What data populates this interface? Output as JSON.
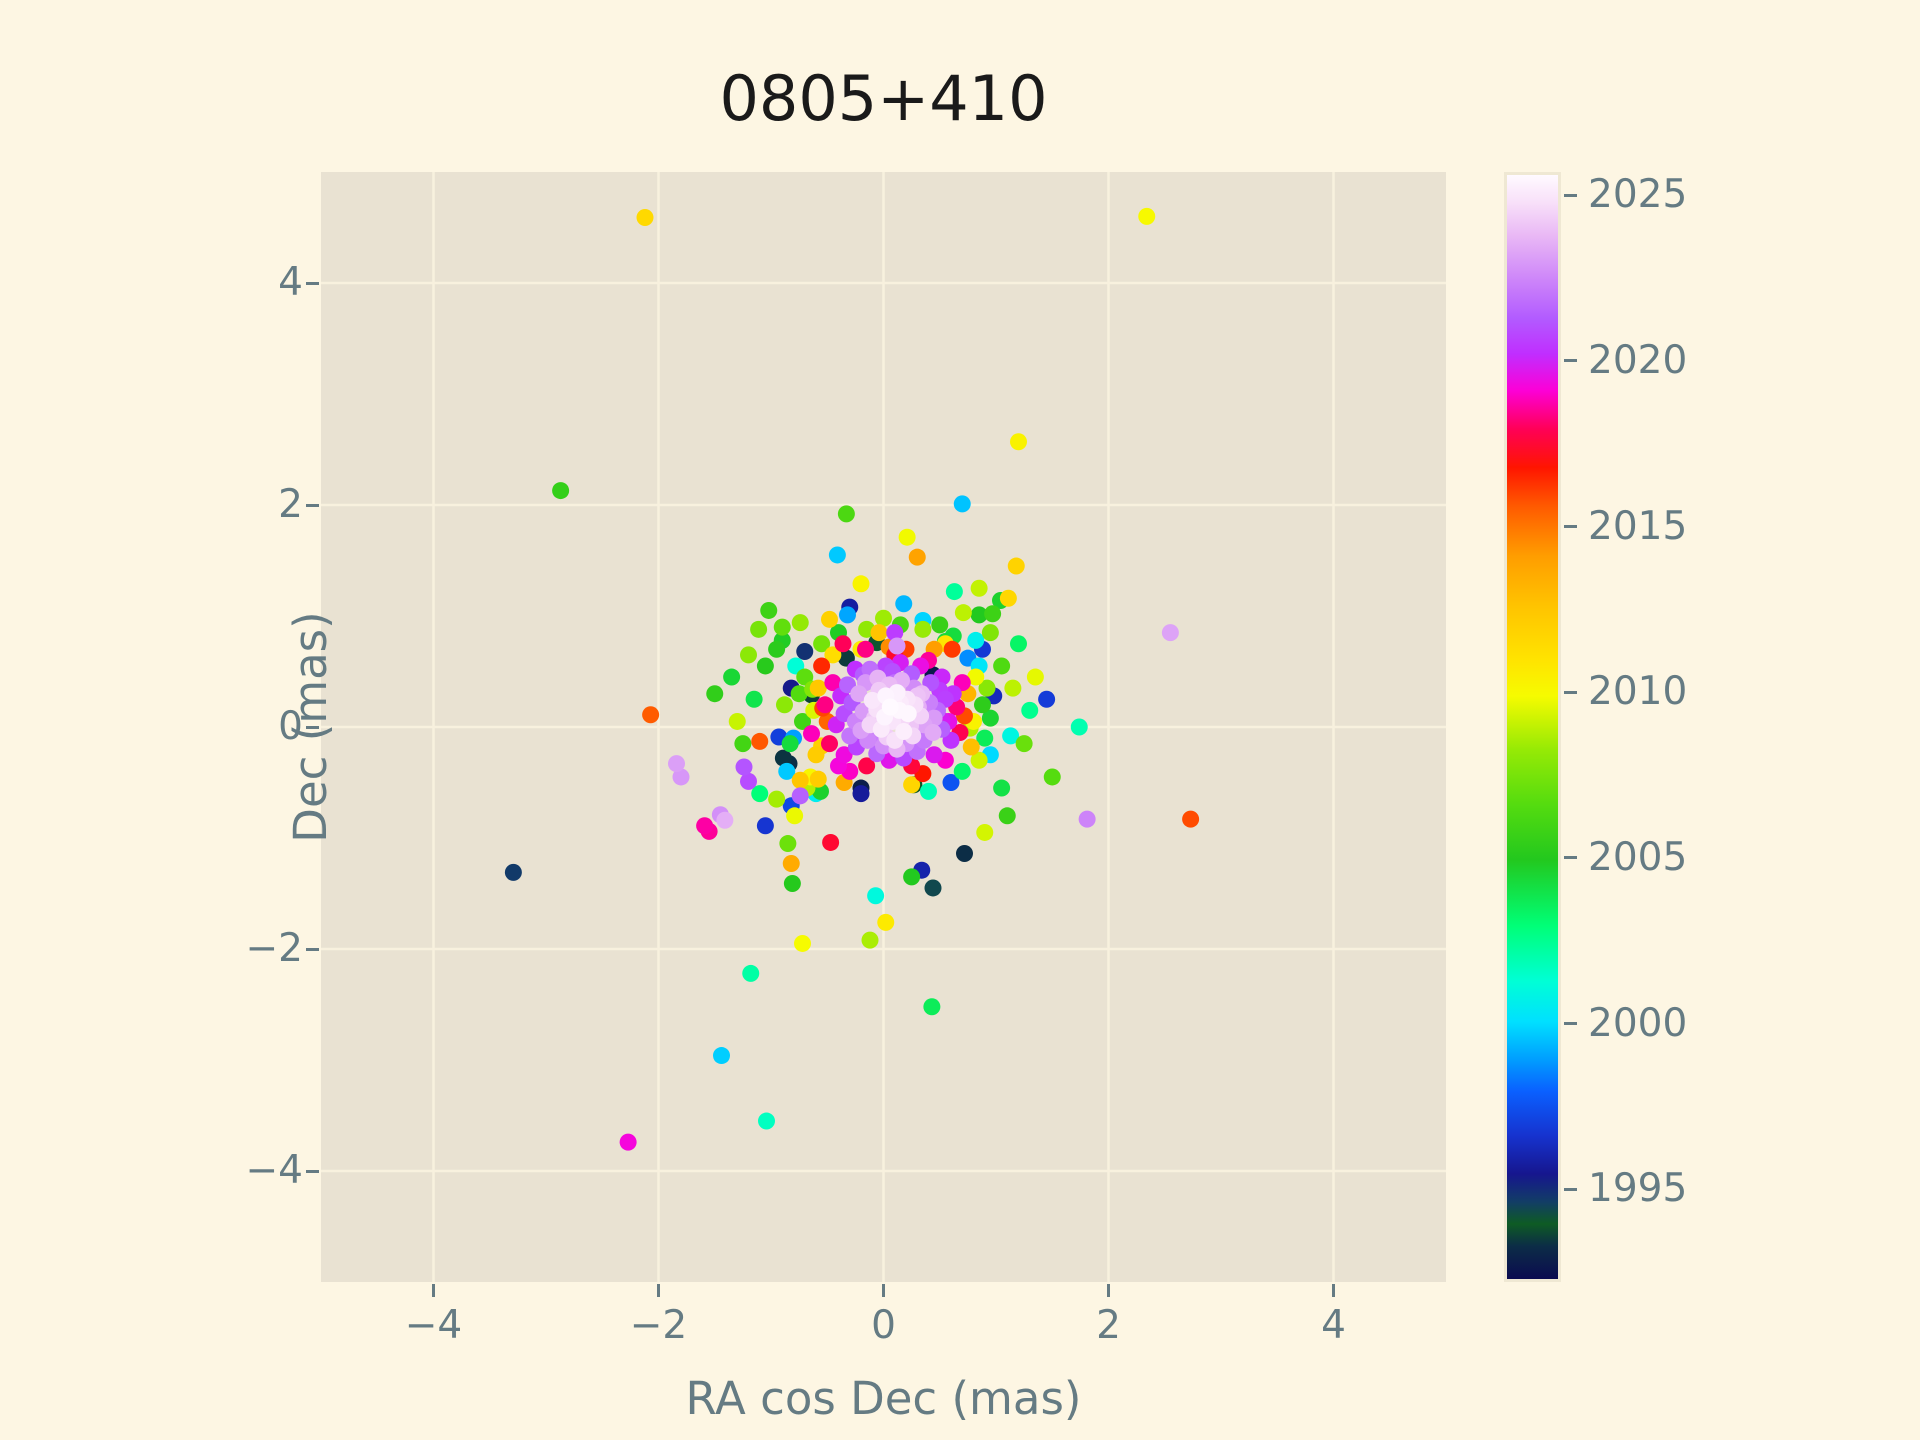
{
  "title": "0805+410",
  "colors": {
    "figure_bg": "#fdf6e3",
    "axes_bg": "#e9e2d2",
    "grid": "#f8f1de",
    "tick_text": "#657b83",
    "axis_label_text": "#657b83",
    "title_text": "#1a1a1a",
    "colorbar_border": "#efe8d3"
  },
  "colorbar": {
    "vmin": 1992.2,
    "vmax": 2025.7,
    "tick_years": [
      1995,
      2000,
      2005,
      2010,
      2015,
      2020,
      2025
    ],
    "colormap_name": "gist_ncar-like",
    "stops": [
      [
        0.0,
        "#0b0b50"
      ],
      [
        0.03,
        "#0c2d46"
      ],
      [
        0.05,
        "#0e5b24"
      ],
      [
        0.07,
        "#123d66"
      ],
      [
        0.095,
        "#16168e"
      ],
      [
        0.13,
        "#1633cf"
      ],
      [
        0.17,
        "#0a60ff"
      ],
      [
        0.2,
        "#00a0ff"
      ],
      [
        0.233,
        "#00e0ff"
      ],
      [
        0.27,
        "#00ffd5"
      ],
      [
        0.32,
        "#00ff77"
      ],
      [
        0.38,
        "#23c81e"
      ],
      [
        0.43,
        "#55dc0f"
      ],
      [
        0.48,
        "#97ea05"
      ],
      [
        0.528,
        "#f6fb00"
      ],
      [
        0.56,
        "#ffe400"
      ],
      [
        0.61,
        "#ffc300"
      ],
      [
        0.655,
        "#ff9d00"
      ],
      [
        0.7,
        "#ff5a00"
      ],
      [
        0.735,
        "#ff1500"
      ],
      [
        0.77,
        "#ff0057"
      ],
      [
        0.805,
        "#fc00d7"
      ],
      [
        0.838,
        "#c02eff"
      ],
      [
        0.87,
        "#b25bff"
      ],
      [
        0.905,
        "#cd85f9"
      ],
      [
        0.945,
        "#e9b8f5"
      ],
      [
        0.975,
        "#f8e0f9"
      ],
      [
        1.0,
        "#fffaff"
      ]
    ]
  },
  "chart_data": {
    "type": "scatter",
    "title": "0805+410",
    "xlabel": "RA cos Dec (mas)",
    "ylabel": "Dec (mas)",
    "xlim": [
      -5,
      5
    ],
    "ylim": [
      -5,
      5
    ],
    "xticks": [
      -4,
      -2,
      0,
      2,
      4
    ],
    "yticks": [
      -4,
      -2,
      0,
      2,
      4
    ],
    "grid": true,
    "marker_diameter_px": 17,
    "color_encoding": "epoch year via rainbow colormap, range 1992.2-2025.7",
    "points_format": [
      "ra_cos_dec_mas",
      "dec_mas",
      "year"
    ],
    "points": [
      [
        -2.12,
        4.59,
        2011.5
      ],
      [
        2.34,
        4.6,
        2010.0
      ],
      [
        1.2,
        2.57,
        2010.3
      ],
      [
        -2.87,
        2.13,
        2005.5
      ],
      [
        0.7,
        2.01,
        1999.5
      ],
      [
        -0.33,
        1.92,
        2006.3
      ],
      [
        0.21,
        1.71,
        2009.8
      ],
      [
        0.3,
        1.53,
        2013.9
      ],
      [
        1.18,
        1.45,
        2011.8
      ],
      [
        1.11,
        1.16,
        2011.6
      ],
      [
        1.04,
        1.14,
        2004.6
      ],
      [
        0.18,
        1.11,
        1999.3
      ],
      [
        2.55,
        0.85,
        2023.3
      ],
      [
        1.45,
        0.25,
        1996.8
      ],
      [
        1.74,
        0.0,
        2001.9
      ],
      [
        2.73,
        -0.83,
        2015.9
      ],
      [
        1.81,
        -0.83,
        2022.5
      ],
      [
        0.72,
        -1.14,
        1993.2
      ],
      [
        0.34,
        -1.29,
        1995.9
      ],
      [
        -3.29,
        -1.31,
        1994.6
      ],
      [
        -2.07,
        0.11,
        2015.6
      ],
      [
        -1.8,
        -0.45,
        2023.0
      ],
      [
        -1.2,
        -0.49,
        2021.0
      ],
      [
        -1.41,
        -0.84,
        2023.6
      ],
      [
        -1.55,
        -0.94,
        2018.6
      ],
      [
        -0.72,
        -1.95,
        2009.9
      ],
      [
        -0.12,
        -1.92,
        2008.6
      ],
      [
        -1.18,
        -2.22,
        2002.1
      ],
      [
        0.43,
        -2.52,
        2003.6
      ],
      [
        -1.44,
        -2.96,
        1999.7
      ],
      [
        -1.04,
        -3.55,
        2001.6
      ],
      [
        -2.27,
        -3.74,
        2019.3
      ],
      [
        -0.84,
        -0.33,
        1993.2
      ],
      [
        -0.41,
        1.55,
        1999.6
      ],
      [
        -0.2,
        1.29,
        2010.2
      ],
      [
        -0.3,
        1.08,
        1995.7
      ],
      [
        -0.32,
        1.01,
        1999.0
      ],
      [
        0.35,
        0.96,
        1999.8
      ],
      [
        0.0,
        0.98,
        2008.4
      ],
      [
        0.71,
        1.03,
        2008.9
      ],
      [
        0.85,
        1.01,
        2004.9
      ],
      [
        0.63,
        1.22,
        2002.3
      ],
      [
        0.85,
        1.25,
        2009.0
      ],
      [
        0.97,
        1.02,
        2005.8
      ],
      [
        0.02,
        -1.76,
        2010.7
      ],
      [
        -0.07,
        -1.52,
        2001.0
      ],
      [
        0.25,
        -1.35,
        2004.9
      ],
      [
        0.44,
        -1.45,
        1994.3
      ],
      [
        0.61,
        0.7,
        2016.2
      ],
      [
        -0.16,
        0.7,
        2018.4
      ],
      [
        -0.36,
        0.75,
        2018.0
      ],
      [
        -0.04,
        0.85,
        2012.6
      ],
      [
        0.1,
        0.85,
        2020.6
      ],
      [
        0.12,
        0.73,
        2023.0
      ],
      [
        0.55,
        0.77,
        2004.3
      ],
      [
        0.82,
        0.78,
        2000.6
      ],
      [
        -1.02,
        1.05,
        2005.8
      ],
      [
        -1.11,
        0.88,
        2007.5
      ],
      [
        -0.9,
        0.78,
        2004.8
      ],
      [
        -0.95,
        0.7,
        2005.2
      ],
      [
        -0.74,
        0.94,
        2008.2
      ],
      [
        -0.48,
        0.97,
        2011.9
      ],
      [
        -0.88,
        0.2,
        2008.0
      ],
      [
        -0.64,
        0.29,
        1993.5
      ],
      [
        -0.63,
        0.34,
        2007.8
      ],
      [
        -0.54,
        0.17,
        2016.0
      ],
      [
        -1.1,
        -0.13,
        2015.7
      ],
      [
        -0.93,
        -0.09,
        1996.9
      ],
      [
        -0.64,
        -0.06,
        2018.9
      ],
      [
        -0.83,
        -0.15,
        2004.2
      ],
      [
        -0.55,
        -0.17,
        2012.0
      ],
      [
        -0.89,
        -0.28,
        1993.3
      ],
      [
        -0.86,
        -0.4,
        1999.6
      ],
      [
        -1.84,
        -0.33,
        2023.2
      ],
      [
        -1.24,
        -0.36,
        2021.2
      ],
      [
        -0.74,
        -0.48,
        2012.5
      ],
      [
        -0.67,
        -0.52,
        1997.0
      ],
      [
        -0.58,
        -0.47,
        2012.2
      ],
      [
        -0.56,
        -0.58,
        2004.6
      ],
      [
        -0.74,
        -0.62,
        2021.5
      ],
      [
        -0.82,
        -0.71,
        1997.2
      ],
      [
        -0.79,
        -0.8,
        2009.7
      ],
      [
        -1.59,
        -0.89,
        2018.7
      ],
      [
        -1.45,
        -0.79,
        2022.8
      ],
      [
        -1.05,
        -0.89,
        1996.6
      ],
      [
        -0.47,
        -1.04,
        2017.5
      ],
      [
        -0.82,
        -1.23,
        2013.6
      ],
      [
        -0.81,
        -1.41,
        2005.0
      ],
      [
        0.02,
        0.28,
        2025.5
      ],
      [
        0.15,
        0.22,
        2025.2
      ],
      [
        -0.06,
        0.16,
        2024.9
      ],
      [
        0.22,
        0.12,
        2025.6
      ],
      [
        0.08,
        0.05,
        2025.0
      ],
      [
        -0.12,
        0.02,
        2024.6
      ],
      [
        0.18,
        -0.04,
        2025.3
      ],
      [
        0.03,
        -0.09,
        2024.4
      ],
      [
        0.28,
        0.2,
        2024.8
      ],
      [
        -0.04,
        0.33,
        2024.3
      ],
      [
        0.12,
        0.31,
        2025.4
      ],
      [
        0.24,
        0.01,
        2024.2
      ],
      [
        -0.1,
        0.24,
        2025.1
      ],
      [
        0.33,
        0.1,
        2024.5
      ],
      [
        0.06,
        0.18,
        2025.7
      ],
      [
        0.17,
        0.08,
        2024.7
      ],
      [
        -0.02,
        -0.02,
        2025.2
      ],
      [
        0.3,
        0.28,
        2024.1
      ],
      [
        0.1,
        -0.12,
        2024.9
      ],
      [
        0.01,
        0.09,
        2025.5
      ],
      [
        0.21,
        0.25,
        2025.0
      ],
      [
        -0.08,
        0.08,
        2024.2
      ],
      [
        0.14,
        0.15,
        2025.6
      ],
      [
        0.26,
        -0.08,
        2024.6
      ],
      [
        -0.01,
        0.21,
        2024.8
      ],
      [
        0.09,
        0.24,
        2025.3
      ],
      [
        -0.18,
        0.14,
        2023.1
      ],
      [
        0.31,
        0.18,
        2023.6
      ],
      [
        0.05,
        0.38,
        2023.9
      ],
      [
        -0.14,
        -0.12,
        2022.6
      ],
      [
        0.36,
        0.02,
        2023.3
      ],
      [
        0.2,
        -0.15,
        2022.9
      ],
      [
        -0.05,
        0.44,
        2023.7
      ],
      [
        0.41,
        0.22,
        2022.4
      ],
      [
        -0.22,
        0.3,
        2023.4
      ],
      [
        0.12,
        -0.2,
        2023.8
      ],
      [
        0.27,
        0.35,
        2022.7
      ],
      [
        -0.16,
        0.4,
        2023.0
      ],
      [
        0.44,
        -0.05,
        2023.5
      ],
      [
        -0.25,
        0.05,
        2022.5
      ],
      [
        0.34,
        0.3,
        2023.9
      ],
      [
        0.0,
        -0.17,
        2022.8
      ],
      [
        -0.2,
        -0.03,
        2023.2
      ],
      [
        0.38,
        0.12,
        2022.3
      ],
      [
        0.16,
        0.42,
        2023.6
      ],
      [
        -0.09,
        -0.08,
        2022.4
      ],
      [
        0.45,
        0.08,
        2023.1
      ],
      [
        0.23,
        0.05,
        2023.9
      ],
      [
        -0.28,
        0.22,
        2021.3
      ],
      [
        0.48,
        0.15,
        2021.8
      ],
      [
        0.08,
        0.5,
        2021.1
      ],
      [
        -0.24,
        -0.18,
        2020.8
      ],
      [
        0.52,
        -0.02,
        2021.5
      ],
      [
        0.3,
        -0.22,
        2022.0
      ],
      [
        -0.12,
        0.52,
        2021.9
      ],
      [
        0.55,
        0.25,
        2020.7
      ],
      [
        -0.32,
        0.38,
        2021.6
      ],
      [
        0.18,
        -0.28,
        2020.9
      ],
      [
        0.42,
        0.4,
        2021.2
      ],
      [
        -0.3,
        -0.08,
        2022.1
      ],
      [
        0.25,
        0.48,
        2021.4
      ],
      [
        -0.06,
        -0.24,
        2021.7
      ],
      [
        0.5,
        0.33,
        2020.6
      ],
      [
        -0.35,
        0.12,
        2021.0
      ],
      [
        0.36,
        -0.12,
        2022.2
      ],
      [
        0.02,
        0.55,
        2020.8
      ],
      [
        -0.18,
        0.47,
        2021.4
      ],
      [
        0.1,
        0.4,
        2021.9
      ],
      [
        0.58,
        0.05,
        2019.6
      ],
      [
        -0.38,
        0.28,
        2020.2
      ],
      [
        0.15,
        0.58,
        2019.9
      ],
      [
        -0.35,
        -0.25,
        2019.4
      ],
      [
        0.6,
        -0.12,
        2020.4
      ],
      [
        0.45,
        -0.25,
        2019.8
      ],
      [
        -0.42,
        0.02,
        2020.0
      ],
      [
        0.33,
        0.55,
        2019.5
      ],
      [
        -0.25,
        0.52,
        2020.3
      ],
      [
        0.05,
        -0.3,
        2019.7
      ],
      [
        0.52,
        0.45,
        2020.1
      ],
      [
        -0.4,
        -0.35,
        2019.3
      ],
      [
        0.62,
        0.3,
        2020.4
      ],
      [
        0.52,
        0.06,
        2019.9
      ],
      [
        0.65,
        0.18,
        2018.3
      ],
      [
        -0.45,
        0.4,
        2018.8
      ],
      [
        0.25,
        -0.35,
        2017.6
      ],
      [
        -0.48,
        -0.15,
        2018.1
      ],
      [
        0.68,
        -0.05,
        2017.9
      ],
      [
        0.4,
        0.6,
        2018.6
      ],
      [
        -0.3,
        -0.4,
        2019.0
      ],
      [
        0.1,
        0.65,
        2017.4
      ],
      [
        -0.52,
        0.2,
        2018.4
      ],
      [
        0.55,
        -0.3,
        2019.1
      ],
      [
        -0.15,
        -0.35,
        2017.8
      ],
      [
        0.7,
        0.4,
        2018.9
      ],
      [
        -0.55,
        0.55,
        2016.5
      ],
      [
        0.72,
        0.1,
        2015.9
      ],
      [
        0.35,
        -0.42,
        2016.8
      ],
      [
        -0.5,
        0.05,
        2015.4
      ],
      [
        0.2,
        0.7,
        2016.1
      ],
      [
        0.75,
        0.3,
        2013.2
      ],
      [
        -0.58,
        0.35,
        2012.4
      ],
      [
        0.45,
        0.7,
        2014.1
      ],
      [
        -0.35,
        -0.5,
        2013.6
      ],
      [
        0.78,
        -0.18,
        2012.8
      ],
      [
        0.05,
        0.72,
        2014.5
      ],
      [
        -0.6,
        -0.25,
        2012.2
      ],
      [
        0.8,
        0.05,
        2010.3
      ],
      [
        -0.62,
        0.15,
        2009.4
      ],
      [
        0.55,
        0.75,
        2010.9
      ],
      [
        -0.45,
        0.65,
        2011.3
      ],
      [
        0.82,
        0.45,
        2009.8
      ],
      [
        0.25,
        -0.52,
        2011.7
      ],
      [
        -0.2,
        0.7,
        2010.6
      ],
      [
        0.85,
        -0.3,
        2009.2
      ],
      [
        -0.65,
        -0.45,
        2010.1
      ],
      [
        0.88,
        0.2,
        2005.3
      ],
      [
        -0.7,
        0.45,
        2006.8
      ],
      [
        0.62,
        0.82,
        2004.2
      ],
      [
        -0.55,
        0.75,
        2007.4
      ],
      [
        0.9,
        -0.1,
        2003.6
      ],
      [
        0.35,
        0.88,
        2008.3
      ],
      [
        -0.72,
        0.05,
        2005.9
      ],
      [
        0.15,
        0.92,
        2006.2
      ],
      [
        -0.4,
        0.85,
        2004.8
      ],
      [
        0.92,
        0.35,
        2007.9
      ],
      [
        0.7,
        -0.4,
        2003.2
      ],
      [
        -0.68,
        -0.55,
        2008.8
      ],
      [
        0.5,
        0.92,
        2005.6
      ],
      [
        -0.75,
        0.3,
        2006.5
      ],
      [
        0.95,
        0.08,
        2004.5
      ],
      [
        -0.15,
        0.88,
        2008.1
      ],
      [
        0.77,
        -0.01,
        2008.7
      ],
      [
        0.95,
        -0.25,
        1999.9
      ],
      [
        -0.78,
        0.55,
        2001.2
      ],
      [
        0.75,
        0.62,
        1998.6
      ],
      [
        -0.6,
        -0.6,
        2000.5
      ],
      [
        0.4,
        -0.58,
        2001.8
      ],
      [
        -0.8,
        -0.1,
        1998.9
      ],
      [
        0.85,
        0.55,
        2000.2
      ],
      [
        1.13,
        -0.08,
        2000.9
      ],
      [
        0.98,
        0.28,
        1996.2
      ],
      [
        -0.82,
        0.35,
        1995.3
      ],
      [
        0.6,
        -0.5,
        1997.5
      ],
      [
        -0.7,
        0.68,
        1994.8
      ],
      [
        0.88,
        0.7,
        1996.7
      ],
      [
        -0.2,
        -0.6,
        1995.6
      ],
      [
        0.27,
        -0.52,
        1993.8
      ],
      [
        -0.2,
        -0.55,
        1992.8
      ],
      [
        -0.06,
        0.76,
        1994.0
      ],
      [
        0.44,
        0.47,
        1992.6
      ],
      [
        -0.33,
        0.62,
        1993.4
      ],
      [
        1.05,
        0.55,
        2006.4
      ],
      [
        1.15,
        0.35,
        2008.9
      ],
      [
        -1.05,
        0.55,
        2005.1
      ],
      [
        -1.15,
        0.25,
        2003.9
      ],
      [
        1.25,
        -0.15,
        2007.1
      ],
      [
        -1.25,
        -0.15,
        2006.0
      ],
      [
        1.05,
        -0.55,
        2004.0
      ],
      [
        -0.95,
        -0.65,
        2008.5
      ],
      [
        1.3,
        0.15,
        2002.5
      ],
      [
        -1.3,
        0.05,
        2009.1
      ],
      [
        0.95,
        0.85,
        2007.7
      ],
      [
        -0.9,
        0.9,
        2006.9
      ],
      [
        1.1,
        -0.8,
        2005.7
      ],
      [
        -1.1,
        -0.6,
        2002.9
      ],
      [
        1.35,
        0.45,
        2009.6
      ],
      [
        -1.35,
        0.45,
        2004.4
      ],
      [
        0.9,
        -0.95,
        2009.3
      ],
      [
        -0.85,
        -1.05,
        2007.2
      ],
      [
        1.2,
        0.75,
        2003.3
      ],
      [
        -1.2,
        0.65,
        2008.0
      ],
      [
        1.5,
        -0.45,
        2006.6
      ],
      [
        -1.5,
        0.3,
        2005.4
      ]
    ]
  }
}
